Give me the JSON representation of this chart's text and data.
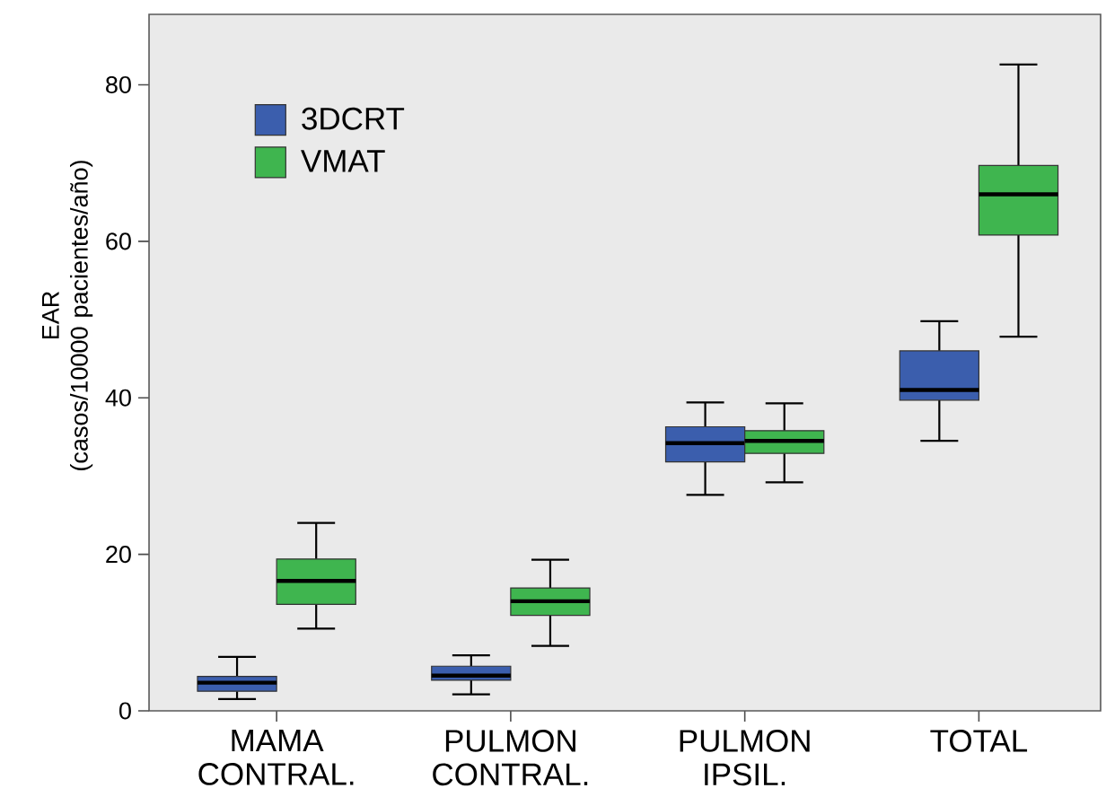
{
  "chart_data": {
    "type": "box",
    "ylabel": "EAR (casos/10000 pacientes/año)",
    "categories": [
      "MAMA CONTRAL.",
      "PULMON CONTRAL.",
      "PULMON IPSIL.",
      "TOTAL"
    ],
    "ylim": [
      0,
      89
    ],
    "yticks": [
      0,
      20,
      40,
      60,
      80
    ],
    "legend": "top left",
    "series": [
      {
        "name": "3DCRT",
        "color": "#3b5ead",
        "boxes": [
          {
            "low": 1.5,
            "q1": 2.5,
            "median": 3.6,
            "q3": 4.4,
            "high": 6.9
          },
          {
            "low": 2.1,
            "q1": 3.9,
            "median": 4.5,
            "q3": 5.7,
            "high": 7.1
          },
          {
            "low": 27.6,
            "q1": 31.8,
            "median": 34.2,
            "q3": 36.3,
            "high": 39.4
          },
          {
            "low": 34.5,
            "q1": 39.7,
            "median": 41.0,
            "q3": 46.0,
            "high": 49.8
          }
        ]
      },
      {
        "name": "VMAT",
        "color": "#3fb54f",
        "boxes": [
          {
            "low": 10.5,
            "q1": 13.6,
            "median": 16.6,
            "q3": 19.4,
            "high": 24.0
          },
          {
            "low": 8.3,
            "q1": 12.2,
            "median": 14.0,
            "q3": 15.7,
            "high": 19.3
          },
          {
            "low": 29.2,
            "q1": 32.9,
            "median": 34.5,
            "q3": 35.8,
            "high": 39.3
          },
          {
            "low": 47.8,
            "q1": 60.8,
            "median": 66.0,
            "q3": 69.7,
            "high": 82.6
          }
        ]
      }
    ]
  }
}
